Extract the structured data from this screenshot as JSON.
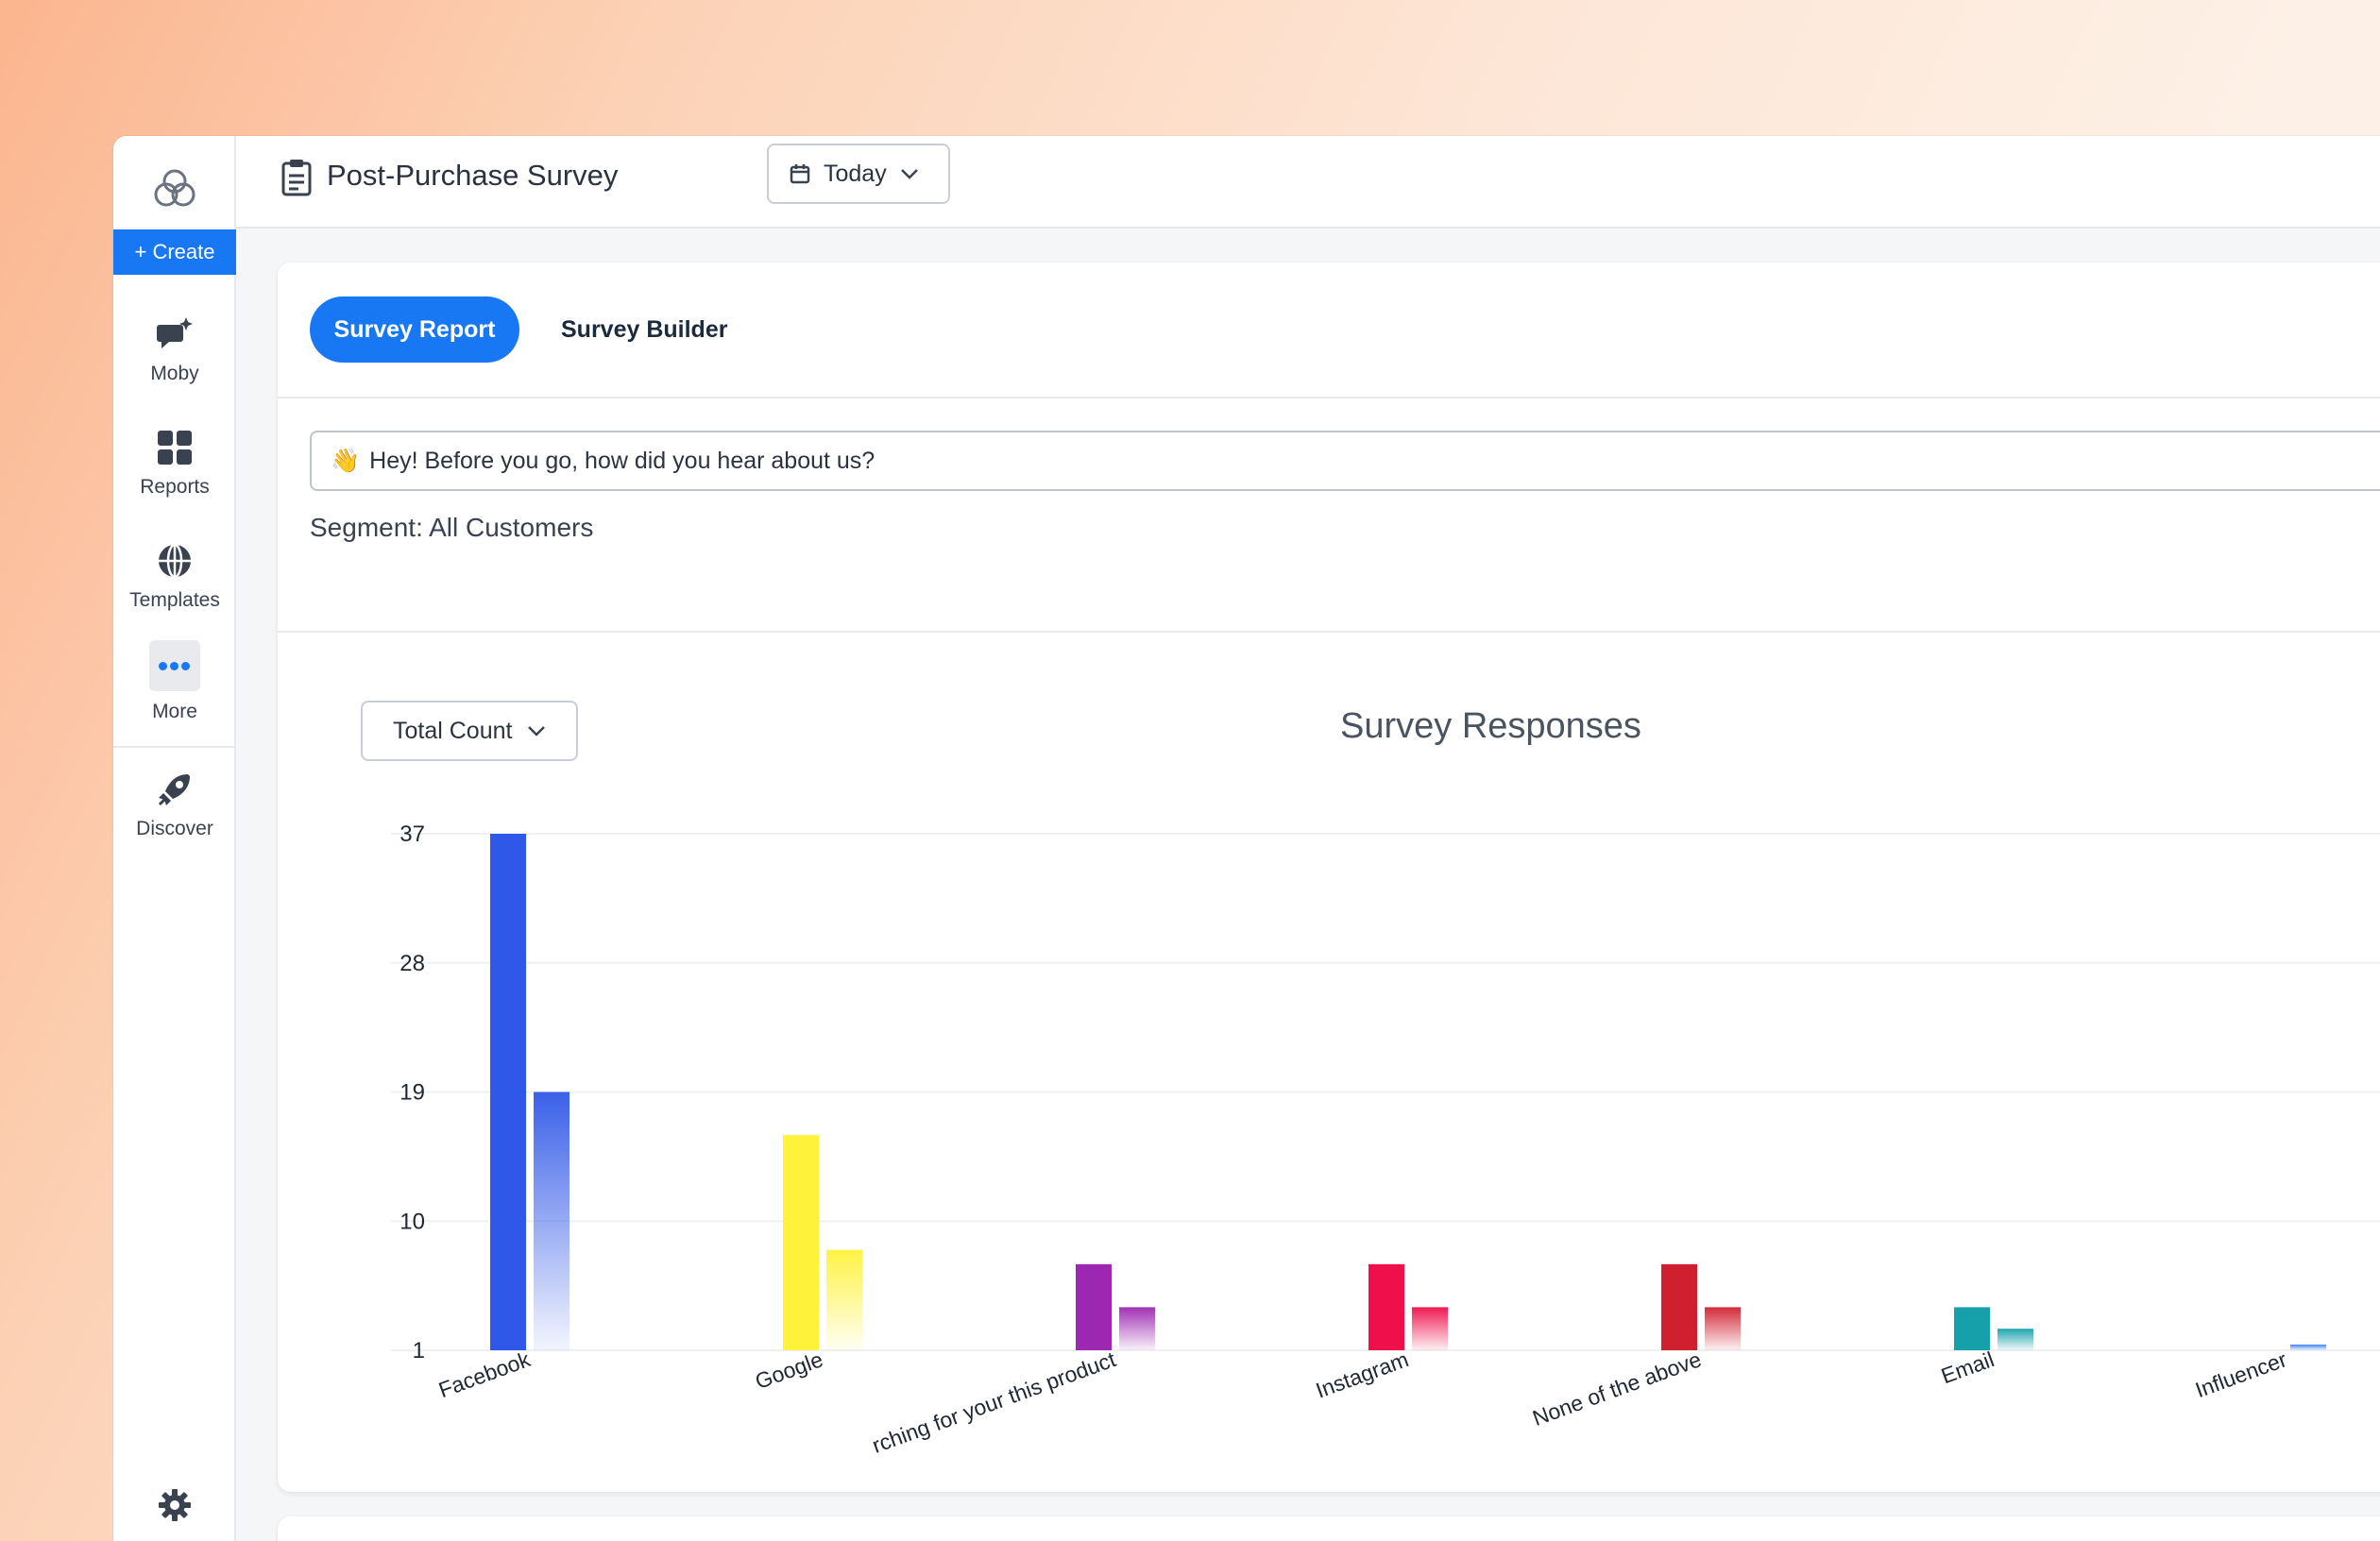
{
  "app": {
    "create_label": "+ Create",
    "nav": [
      {
        "label": "Moby",
        "icon": "moby-chat-icon"
      },
      {
        "label": "Reports",
        "icon": "grid-icon"
      },
      {
        "label": "Templates",
        "icon": "globe-icon"
      },
      {
        "label": "More",
        "icon": "more-dots-icon"
      },
      {
        "label": "Discover",
        "icon": "rocket-icon"
      }
    ]
  },
  "header": {
    "title": "Post-Purchase Survey",
    "date_label": "Today"
  },
  "tabs": {
    "active": "Survey Report",
    "other": "Survey Builder"
  },
  "question": {
    "emoji": "👋",
    "text": "Hey! Before you go, how did you hear about us?"
  },
  "segment": "Segment: All Customers",
  "metric": {
    "selected": "Total Count"
  },
  "chart_data": {
    "type": "bar",
    "title": "Survey Responses",
    "categories": [
      "Facebook",
      "Google",
      "Searching for your this product",
      "Instagram",
      "None of the above",
      "Email",
      "Influencer"
    ],
    "category_label_visible": [
      "Facebook",
      "Google",
      "rching for your this product",
      "Instagram",
      "None of the above",
      "Email",
      "Influencer"
    ],
    "series": [
      {
        "values": [
          37,
          16,
          7,
          7,
          7,
          4,
          null
        ]
      },
      {
        "values": [
          19,
          8,
          4,
          4,
          4,
          2.5,
          1.4
        ]
      }
    ],
    "colors": [
      "#3058e8",
      "#fff23a",
      "#9c27b0",
      "#ef0f4a",
      "#d01f2f",
      "#15a0aa",
      "#3a7cf2"
    ],
    "yticks": [
      1,
      10,
      19,
      28,
      37
    ],
    "ylim": [
      1,
      37
    ],
    "grid": true
  }
}
